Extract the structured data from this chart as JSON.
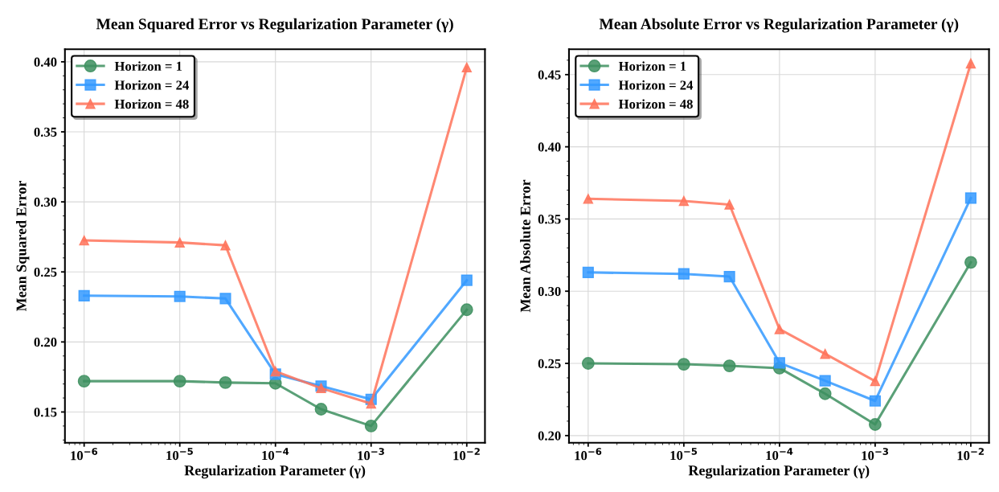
{
  "chart_data": [
    {
      "type": "line",
      "title": "Mean Squared Error vs Regularization Parameter (γ)",
      "xlabel": "Regularization Parameter (γ)",
      "ylabel": "Mean Squared Error",
      "log": "x",
      "grid": true,
      "legend": "top left",
      "line_style": "solid",
      "x": [
        1e-06,
        1e-05,
        3e-05,
        0.0001,
        0.0003,
        0.001,
        0.01
      ],
      "xlim": [
        6.3e-07,
        0.0155
      ],
      "xticks": [
        {
          "value": 1e-06,
          "label": "10$^{−6}$"
        },
        {
          "value": 1e-05,
          "label": "10$^{−5}$"
        },
        {
          "value": 0.0001,
          "label": "10$^{−4}$"
        },
        {
          "value": 0.001,
          "label": "10$^{−3}$"
        },
        {
          "value": 0.01,
          "label": "10$^{−2}$"
        }
      ],
      "ylim": [
        0.128,
        0.409
      ],
      "yticks": [
        {
          "value": 0.15,
          "label": "0.15"
        },
        {
          "value": 0.2,
          "label": "0.20"
        },
        {
          "value": 0.25,
          "label": "0.25"
        },
        {
          "value": 0.3,
          "label": "0.30"
        },
        {
          "value": 0.35,
          "label": "0.35"
        },
        {
          "value": 0.4,
          "label": "0.40"
        }
      ],
      "series": [
        {
          "name": "Horizon = 1",
          "color": "#3d8f5f",
          "marker": "circle",
          "values": [
            0.172,
            0.172,
            0.171,
            0.1705,
            0.152,
            0.14,
            0.223
          ]
        },
        {
          "name": "Horizon = 24",
          "color": "#3399ff",
          "marker": "square",
          "values": [
            0.233,
            0.2325,
            0.231,
            0.177,
            0.1685,
            0.159,
            0.244
          ]
        },
        {
          "name": "Horizon = 48",
          "color": "#ff735a",
          "marker": "triangle",
          "values": [
            0.2725,
            0.271,
            0.269,
            0.179,
            0.167,
            0.156,
            0.396
          ]
        }
      ]
    },
    {
      "type": "line",
      "title": "Mean Absolute Error vs Regularization Parameter (γ)",
      "xlabel": "Regularization Parameter (γ)",
      "ylabel": "Mean Absolute Error",
      "log": "x",
      "grid": true,
      "legend": "top left",
      "line_style": "solid",
      "x": [
        1e-06,
        1e-05,
        3e-05,
        0.0001,
        0.0003,
        0.001,
        0.01
      ],
      "xlim": [
        6.3e-07,
        0.0155
      ],
      "xticks": [
        {
          "value": 1e-06,
          "label": "10$^{−6}$"
        },
        {
          "value": 1e-05,
          "label": "10$^{−5}$"
        },
        {
          "value": 0.0001,
          "label": "10$^{−4}$"
        },
        {
          "value": 0.001,
          "label": "10$^{−3}$"
        },
        {
          "value": 0.01,
          "label": "10$^{−2}$"
        }
      ],
      "ylim": [
        0.195,
        0.4676
      ],
      "yticks": [
        {
          "value": 0.2,
          "label": "0.20"
        },
        {
          "value": 0.25,
          "label": "0.25"
        },
        {
          "value": 0.3,
          "label": "0.30"
        },
        {
          "value": 0.35,
          "label": "0.35"
        },
        {
          "value": 0.4,
          "label": "0.40"
        },
        {
          "value": 0.45,
          "label": "0.45"
        }
      ],
      "series": [
        {
          "name": "Horizon = 1",
          "color": "#3d8f5f",
          "marker": "circle",
          "values": [
            0.25,
            0.2494,
            0.2483,
            0.2467,
            0.229,
            0.2077,
            0.32
          ]
        },
        {
          "name": "Horizon = 24",
          "color": "#3399ff",
          "marker": "square",
          "values": [
            0.313,
            0.312,
            0.3101,
            0.2504,
            0.238,
            0.224,
            0.3645
          ]
        },
        {
          "name": "Horizon = 48",
          "color": "#ff735a",
          "marker": "triangle",
          "values": [
            0.364,
            0.3625,
            0.36,
            0.2737,
            0.2566,
            0.2377,
            0.4577
          ]
        }
      ]
    }
  ]
}
